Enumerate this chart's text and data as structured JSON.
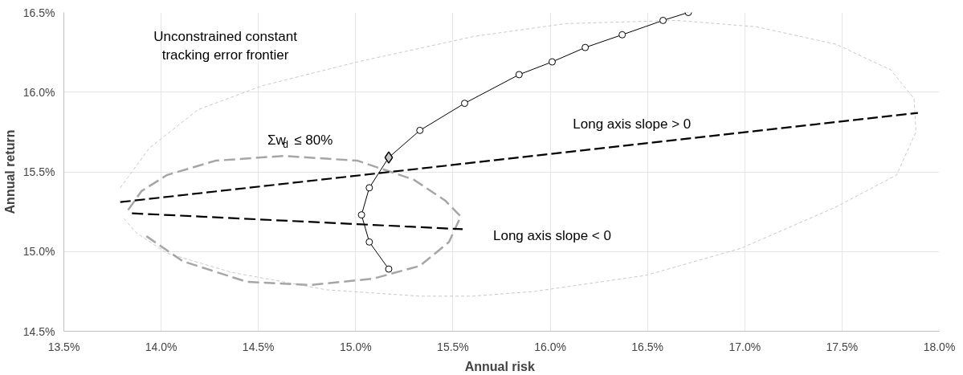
{
  "chart_data": {
    "type": "line",
    "xlabel": "Annual  risk",
    "ylabel": "Annual return",
    "xlim": [
      13.5,
      18.0
    ],
    "ylim": [
      14.5,
      16.5
    ],
    "xticks": [
      {
        "value": 13.5,
        "label": "13.5%"
      },
      {
        "value": 14.0,
        "label": "14.0%"
      },
      {
        "value": 14.5,
        "label": "14.5%"
      },
      {
        "value": 15.0,
        "label": "15.0%"
      },
      {
        "value": 15.5,
        "label": "15.5%"
      },
      {
        "value": 16.0,
        "label": "16.0%"
      },
      {
        "value": 16.5,
        "label": "16.5%"
      },
      {
        "value": 17.0,
        "label": "17.0%"
      },
      {
        "value": 17.5,
        "label": "17.5%"
      },
      {
        "value": 18.0,
        "label": "18.0%"
      }
    ],
    "yticks": [
      {
        "value": 14.5,
        "label": "14.5%"
      },
      {
        "value": 15.0,
        "label": "15.0%"
      },
      {
        "value": 15.5,
        "label": "15.5%"
      },
      {
        "value": 16.0,
        "label": "16.0%"
      },
      {
        "value": 16.5,
        "label": "16.5%"
      }
    ],
    "grid": true,
    "legend": false,
    "series": [
      {
        "color": "#c8c8c8",
        "line_style": "dashed",
        "x": [
          13.79,
          13.94,
          14.19,
          14.52,
          15.01,
          15.61,
          16.08,
          16.65,
          17.06,
          17.47,
          17.75,
          17.87,
          17.88,
          17.78,
          17.47,
          16.98,
          16.49,
          15.92,
          15.6,
          15.33,
          14.85,
          14.36,
          14.03,
          13.87,
          13.8
        ],
        "values": [
          15.4,
          15.65,
          15.89,
          16.04,
          16.19,
          16.35,
          16.43,
          16.45,
          16.41,
          16.3,
          16.14,
          15.96,
          15.75,
          15.48,
          15.28,
          15.02,
          14.85,
          14.75,
          14.72,
          14.72,
          14.76,
          14.87,
          14.99,
          15.12,
          15.22
        ]
      },
      {
        "color": "#a6a6a6",
        "line_style": "dashed",
        "x": [
          13.83,
          13.9,
          14.03,
          14.28,
          14.63,
          15.01,
          15.3,
          15.46,
          15.54,
          15.48,
          15.33,
          15.09,
          14.77,
          14.44,
          14.11,
          13.92
        ],
        "values": [
          15.26,
          15.38,
          15.48,
          15.57,
          15.6,
          15.57,
          15.45,
          15.32,
          15.22,
          15.06,
          14.91,
          14.83,
          14.79,
          14.81,
          14.94,
          15.1
        ]
      },
      {
        "color": "#000000",
        "line_style": "dashed",
        "x": [
          13.79,
          17.89
        ],
        "values": [
          15.31,
          15.87
        ]
      },
      {
        "color": "#000000",
        "line_style": "dashed",
        "x": [
          13.85,
          15.55
        ],
        "values": [
          15.24,
          15.14
        ]
      },
      {
        "color": "#000000",
        "line_style": "solid",
        "marker": "circle",
        "x": [
          15.17,
          15.07,
          15.03,
          15.07,
          15.17,
          15.33,
          15.56,
          15.84,
          16.01,
          16.18,
          16.37,
          16.58,
          16.71
        ],
        "values": [
          14.89,
          15.06,
          15.23,
          15.4,
          15.59,
          15.76,
          15.93,
          16.11,
          16.19,
          16.28,
          16.36,
          16.45,
          16.5
        ]
      },
      {
        "type": "scatter",
        "color": "#c8c8c8",
        "marker": "diamond",
        "x": [
          15.17
        ],
        "values": [
          15.59
        ]
      }
    ],
    "annotations": [
      "Unconstrained constant\ntracking error frontier",
      "Σw$_{d}$ ≤ 80%",
      "Long axis slope > 0",
      "Long axis slope < 0"
    ]
  }
}
